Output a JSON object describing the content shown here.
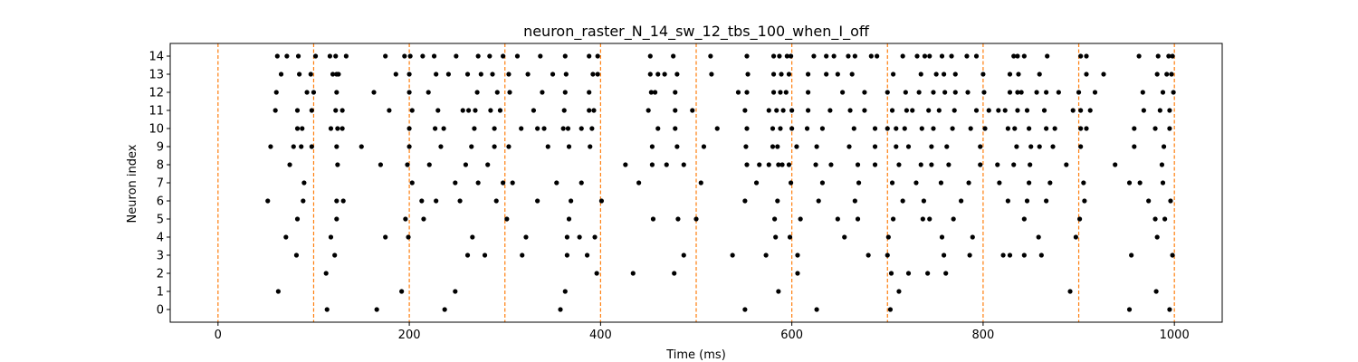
{
  "chart_data": {
    "type": "scatter",
    "title": "neuron_raster_N_14_sw_12_tbs_100_when_I_off",
    "xlabel": "Time (ms)",
    "ylabel": "Neuron index",
    "xlim": [
      -50,
      1050
    ],
    "ylim": [
      -0.7,
      14.7
    ],
    "xticks": [
      0,
      200,
      400,
      600,
      800,
      1000
    ],
    "yticks": [
      0,
      1,
      2,
      3,
      4,
      5,
      6,
      7,
      8,
      9,
      10,
      11,
      12,
      13,
      14
    ],
    "grid": false,
    "marker_color": "#000000",
    "vline_color": "#ff7f0e",
    "vlines": [
      0,
      100,
      200,
      300,
      400,
      500,
      600,
      700,
      800,
      900,
      1000
    ],
    "series": [
      {
        "neuron": 0,
        "times": [
          114,
          166,
          237,
          358,
          551,
          626,
          703,
          953,
          995
        ]
      },
      {
        "neuron": 1,
        "times": [
          63,
          192,
          248,
          363,
          586,
          712,
          891,
          981
        ]
      },
      {
        "neuron": 2,
        "times": [
          113,
          396,
          434,
          477,
          606,
          704,
          722,
          742,
          761
        ]
      },
      {
        "neuron": 3,
        "times": [
          82,
          122,
          261,
          279,
          318,
          365,
          386,
          487,
          538,
          573,
          606,
          680,
          700,
          759,
          786,
          821,
          828,
          843,
          861,
          955,
          998
        ]
      },
      {
        "neuron": 4,
        "times": [
          71,
          118,
          175,
          199,
          266,
          322,
          365,
          378,
          394,
          583,
          598,
          655,
          701,
          757,
          789,
          858,
          897,
          982
        ]
      },
      {
        "neuron": 5,
        "times": [
          83,
          124,
          196,
          215,
          302,
          367,
          455,
          481,
          500,
          582,
          609,
          648,
          669,
          706,
          737,
          744,
          769,
          843,
          901,
          980,
          990
        ]
      },
      {
        "neuron": 6,
        "times": [
          52,
          89,
          124,
          131,
          213,
          228,
          253,
          291,
          334,
          369,
          401,
          551,
          585,
          628,
          666,
          716,
          738,
          777,
          826,
          846,
          866,
          906,
          973,
          996
        ]
      },
      {
        "neuron": 7,
        "times": [
          90,
          203,
          248,
          272,
          298,
          308,
          354,
          380,
          440,
          505,
          563,
          599,
          632,
          670,
          705,
          730,
          756,
          785,
          817,
          848,
          870,
          905,
          953,
          964,
          988
        ]
      },
      {
        "neuron": 8,
        "times": [
          75,
          125,
          170,
          198,
          221,
          259,
          282,
          426,
          454,
          469,
          487,
          553,
          566,
          576,
          586,
          590,
          597,
          625,
          641,
          669,
          687,
          712,
          735,
          746,
          764,
          797,
          815,
          832,
          849,
          887,
          938,
          987
        ]
      },
      {
        "neuron": 9,
        "times": [
          55,
          79,
          87,
          98,
          124,
          150,
          200,
          233,
          265,
          289,
          304,
          345,
          367,
          389,
          454,
          480,
          508,
          552,
          580,
          585,
          605,
          626,
          660,
          687,
          709,
          722,
          746,
          762,
          797,
          835,
          850,
          859,
          873,
          902,
          958,
          989
        ]
      },
      {
        "neuron": 10,
        "times": [
          83,
          88,
          118,
          125,
          130,
          200,
          227,
          236,
          268,
          289,
          317,
          334,
          341,
          361,
          366,
          380,
          391,
          460,
          478,
          522,
          553,
          580,
          588,
          600,
          616,
          632,
          665,
          687,
          700,
          709,
          718,
          736,
          748,
          768,
          787,
          802,
          826,
          833,
          848,
          866,
          875,
          902,
          908,
          958,
          980,
          995
        ]
      },
      {
        "neuron": 11,
        "times": [
          60,
          83,
          98,
          123,
          130,
          179,
          203,
          230,
          256,
          262,
          269,
          285,
          295,
          330,
          362,
          388,
          393,
          450,
          478,
          496,
          551,
          576,
          584,
          591,
          600,
          617,
          640,
          661,
          676,
          705,
          720,
          726,
          743,
          754,
          770,
          793,
          806,
          816,
          823,
          836,
          846,
          864,
          894,
          902,
          912,
          968,
          985,
          995
        ]
      },
      {
        "neuron": 12,
        "times": [
          61,
          93,
          100,
          124,
          163,
          200,
          220,
          271,
          292,
          305,
          339,
          363,
          388,
          453,
          457,
          478,
          544,
          553,
          581,
          588,
          594,
          617,
          653,
          676,
          700,
          719,
          733,
          748,
          760,
          771,
          784,
          801,
          828,
          836,
          840,
          856,
          866,
          879,
          900,
          917,
          967,
          988,
          999
        ]
      },
      {
        "neuron": 13,
        "times": [
          66,
          85,
          97,
          120,
          124,
          126,
          186,
          200,
          228,
          241,
          261,
          275,
          287,
          304,
          324,
          350,
          364,
          392,
          397,
          452,
          460,
          467,
          480,
          516,
          554,
          581,
          589,
          597,
          617,
          636,
          648,
          663,
          706,
          735,
          751,
          759,
          771,
          800,
          828,
          837,
          859,
          908,
          926,
          982,
          992,
          997
        ]
      },
      {
        "neuron": 14,
        "times": [
          62,
          72,
          84,
          102,
          117,
          123,
          134,
          175,
          195,
          201,
          214,
          226,
          249,
          272,
          284,
          298,
          313,
          337,
          363,
          388,
          397,
          452,
          476,
          515,
          553,
          581,
          587,
          595,
          599,
          623,
          636,
          644,
          659,
          666,
          683,
          689,
          716,
          731,
          739,
          744,
          757,
          767,
          783,
          793,
          832,
          836,
          843,
          867,
          902,
          908,
          963,
          983,
          994,
          998
        ]
      }
    ]
  }
}
